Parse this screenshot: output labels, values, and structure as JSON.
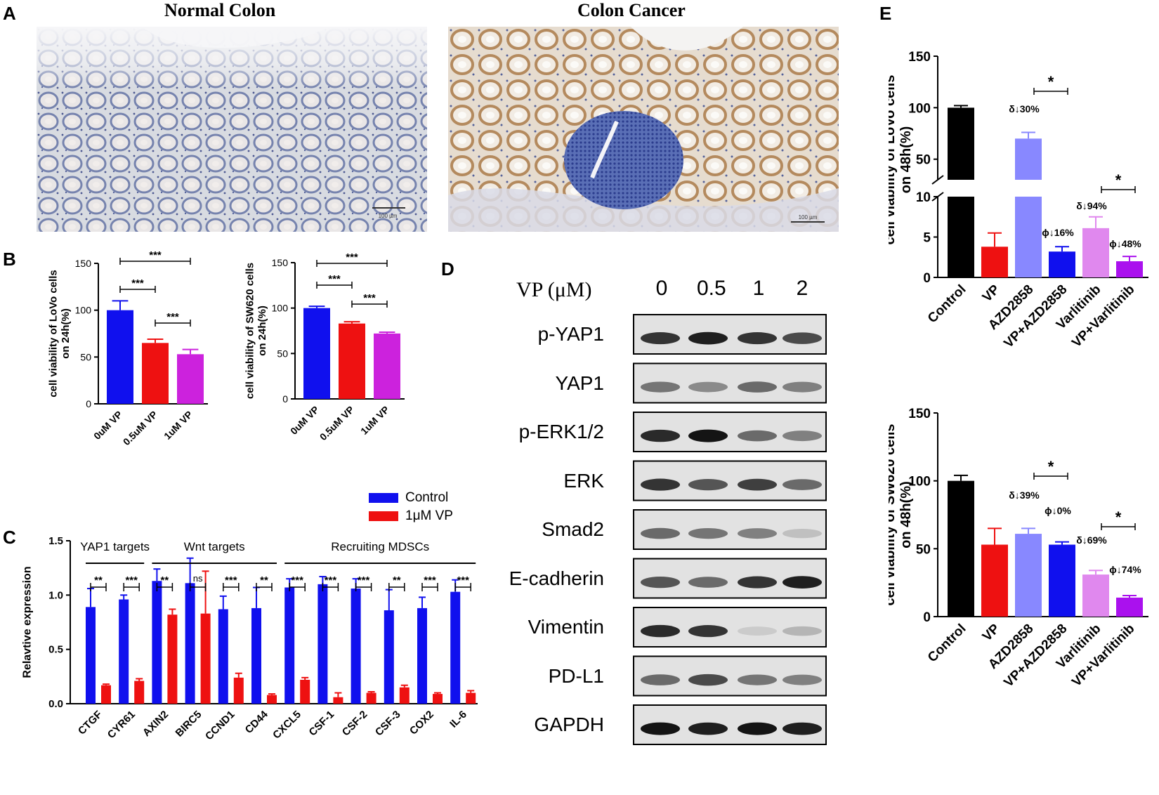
{
  "panels": {
    "A": {
      "label": "A",
      "left_title": "Normal Colon",
      "right_title": "Colon Cancer",
      "scale_left": "100 µm",
      "scale_right": "100 µm"
    },
    "B": {
      "label": "B"
    },
    "C": {
      "label": "C"
    },
    "D": {
      "label": "D"
    },
    "E": {
      "label": "E"
    }
  },
  "legend_bc": {
    "items": [
      {
        "name": "Control",
        "color": "#1010ee"
      },
      {
        "name": "1μM VP",
        "color": "#ee1111"
      }
    ]
  },
  "western": {
    "header": "VP (μM)",
    "concentrations": [
      "0",
      "0.5",
      "1",
      "2"
    ],
    "proteins": [
      "p-YAP1",
      "YAP1",
      "p-ERK1/2",
      "ERK",
      "Smad2",
      "E-cadherin",
      "Vimentin",
      "PD-L1",
      "GAPDH"
    ],
    "intensity": [
      [
        0.85,
        0.95,
        0.85,
        0.75
      ],
      [
        0.55,
        0.45,
        0.6,
        0.5
      ],
      [
        0.9,
        1.0,
        0.6,
        0.5
      ],
      [
        0.85,
        0.7,
        0.8,
        0.6
      ],
      [
        0.6,
        0.55,
        0.5,
        0.2
      ],
      [
        0.7,
        0.6,
        0.85,
        0.95
      ],
      [
        0.9,
        0.85,
        0.15,
        0.25
      ],
      [
        0.6,
        0.75,
        0.55,
        0.5
      ],
      [
        1.0,
        0.95,
        1.0,
        0.95
      ]
    ]
  },
  "chart_data": [
    {
      "id": "B-left",
      "type": "bar",
      "categories": [
        "0uM VP",
        "0.5uM VP",
        "1uM VP"
      ],
      "values": [
        100,
        65,
        53
      ],
      "errors": [
        10,
        4,
        5
      ],
      "colors": [
        "#1010ee",
        "#ee1111",
        "#cc22dd"
      ],
      "ylabel": "cell viability of LoVo cells on 24h(%)",
      "ylim": [
        0,
        150
      ],
      "yticks": [
        "0",
        "50",
        "100",
        "150"
      ],
      "significance": [
        {
          "from": 0,
          "to": 2,
          "text": "***"
        },
        {
          "from": 0,
          "to": 1,
          "text": "***"
        },
        {
          "from": 1,
          "to": 2,
          "text": "***"
        }
      ]
    },
    {
      "id": "B-right",
      "type": "bar",
      "categories": [
        "0uM VP",
        "0.5uM VP",
        "1uM VP"
      ],
      "values": [
        100,
        83,
        72
      ],
      "errors": [
        2,
        2,
        1.5
      ],
      "colors": [
        "#1010ee",
        "#ee1111",
        "#cc22dd"
      ],
      "ylabel": "cell viability of SW620 cells on 24h(%)",
      "ylim": [
        0,
        150
      ],
      "yticks": [
        "0",
        "50",
        "100",
        "150"
      ],
      "significance": [
        {
          "from": 0,
          "to": 2,
          "text": "***"
        },
        {
          "from": 0,
          "to": 1,
          "text": "***"
        },
        {
          "from": 1,
          "to": 2,
          "text": "***"
        }
      ]
    },
    {
      "id": "C",
      "type": "bar",
      "categories": [
        "CTGF",
        "CYR61",
        "AXIN2",
        "BIRC5",
        "CCND1",
        "CD44",
        "CXCL5",
        "CSF-1",
        "CSF-2",
        "CSF-3",
        "COX2",
        "IL-6"
      ],
      "series": [
        {
          "name": "Control",
          "values": [
            0.89,
            0.96,
            1.13,
            1.11,
            0.87,
            0.88,
            1.07,
            1.1,
            1.06,
            0.86,
            0.88,
            1.03
          ],
          "errors": [
            0.17,
            0.04,
            0.11,
            0.23,
            0.12,
            0.19,
            0.08,
            0.07,
            0.09,
            0.19,
            0.1,
            0.11
          ]
        },
        {
          "name": "1μM VP",
          "values": [
            0.17,
            0.21,
            0.82,
            0.83,
            0.24,
            0.08,
            0.22,
            0.06,
            0.1,
            0.15,
            0.09,
            0.1
          ],
          "errors": [
            0.01,
            0.02,
            0.05,
            0.39,
            0.04,
            0.01,
            0.02,
            0.04,
            0.01,
            0.02,
            0.01,
            0.02
          ]
        }
      ],
      "ylabel": "Relavtive expression",
      "ylim": [
        0,
        1.5
      ],
      "yticks": [
        "0.0",
        "0.5",
        "1.0",
        "1.5"
      ],
      "significance": [
        "**",
        "***",
        "**",
        "ns",
        "***",
        "**",
        "***",
        "***",
        "***",
        "**",
        "***",
        "***"
      ],
      "groups": [
        {
          "label": "YAP1 targets",
          "from": 0,
          "to": 1
        },
        {
          "label": "Wnt targets",
          "from": 2,
          "to": 5
        },
        {
          "label": "Recruiting MDSCs",
          "from": 6,
          "to": 11
        }
      ]
    },
    {
      "id": "E-top",
      "type": "bar",
      "categories": [
        "Control",
        "VP",
        "AZD2858",
        "VP+AZD2858",
        "Varlitinib",
        "VP+Varlitinib"
      ],
      "values": [
        100,
        3.8,
        70,
        3.2,
        6.1,
        2.0
      ],
      "errors": [
        2,
        1.7,
        6,
        0.6,
        1.4,
        0.6
      ],
      "colors": [
        "#000000",
        "#ee1111",
        "#8888ff",
        "#1010ee",
        "#e088ee",
        "#aa11ee"
      ],
      "ylabel": "cell viability of LoVo cells on 48h(%)",
      "axis_break": {
        "lower": [
          0,
          10
        ],
        "upper": [
          30,
          150
        ]
      },
      "yticks_lower": [
        "0",
        "5",
        "10"
      ],
      "yticks_upper": [
        "50",
        "100",
        "150"
      ],
      "annotations": [
        "",
        "",
        "δ↓30%",
        "ϕ↓16%",
        "δ↓94%",
        "ϕ↓48%"
      ],
      "significance": [
        {
          "from": 2,
          "to": 3,
          "text": "*"
        },
        {
          "from": 4,
          "to": 5,
          "text": "*"
        }
      ]
    },
    {
      "id": "E-bottom",
      "type": "bar",
      "categories": [
        "Control",
        "VP",
        "AZD2858",
        "VP+AZD2858",
        "Varlitinib",
        "VP+Varlitinib"
      ],
      "values": [
        100,
        53,
        61,
        53,
        31,
        14
      ],
      "errors": [
        4,
        12,
        4,
        2,
        3,
        1.5
      ],
      "colors": [
        "#000000",
        "#ee1111",
        "#8888ff",
        "#1010ee",
        "#e088ee",
        "#aa11ee"
      ],
      "ylabel": "cell viability of SW620 cells on 48h(%)",
      "ylim": [
        0,
        150
      ],
      "yticks": [
        "0",
        "50",
        "100",
        "150"
      ],
      "annotations": [
        "",
        "",
        "δ↓39%",
        "ϕ↓0%",
        "δ↓69%",
        "ϕ↓74%"
      ],
      "significance": [
        {
          "from": 2,
          "to": 3,
          "text": "*"
        },
        {
          "from": 4,
          "to": 5,
          "text": "*"
        }
      ]
    }
  ]
}
